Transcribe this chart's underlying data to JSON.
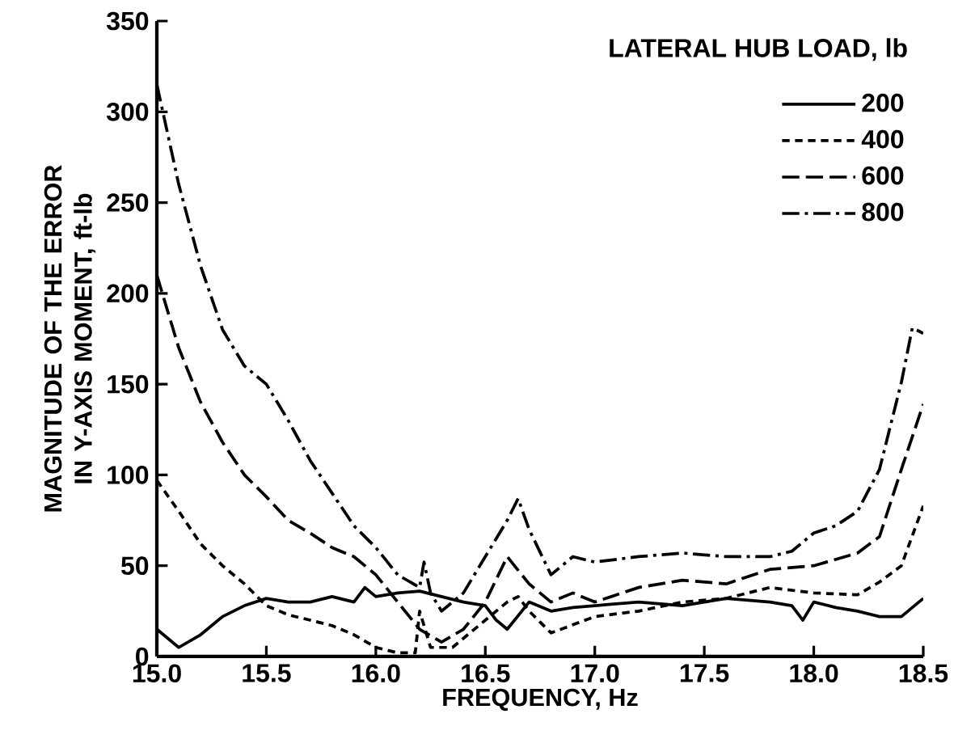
{
  "chart_data": {
    "type": "line",
    "xlabel": "FREQUENCY, Hz",
    "ylabel": "MAGNITUDE OF THE ERROR IN Y-AXIS MOMENT, ft-lb",
    "legend_title": "LATERAL HUB LOAD, lb",
    "legend": "top right",
    "grid": false,
    "marker": "none",
    "xlim": [
      15.0,
      18.5
    ],
    "ylim": [
      0,
      350
    ],
    "xticks": [
      {
        "value": 15.0,
        "label": "15.0"
      },
      15.5,
      {
        "value": 16.0,
        "label": "16.0"
      },
      16.5,
      {
        "value": 17.0,
        "label": "17.0"
      },
      17.5,
      {
        "value": 18.0,
        "label": "18.0"
      },
      18.5
    ],
    "yticks": [
      0,
      50,
      100,
      150,
      200,
      250,
      300,
      350
    ],
    "series": [
      {
        "name": "200",
        "color": "#000000",
        "line_style": "solid",
        "x": [
          15.0,
          15.05,
          15.1,
          15.2,
          15.3,
          15.4,
          15.5,
          15.6,
          15.7,
          15.8,
          15.9,
          15.95,
          16.0,
          16.1,
          16.2,
          16.3,
          16.4,
          16.5,
          16.55,
          16.6,
          16.7,
          16.8,
          16.9,
          17.0,
          17.2,
          17.4,
          17.6,
          17.8,
          17.9,
          17.95,
          18.0,
          18.1,
          18.2,
          18.3,
          18.4,
          18.5
        ],
        "values": [
          15,
          10,
          5,
          12,
          22,
          28,
          32,
          30,
          30,
          33,
          30,
          38,
          33,
          35,
          36,
          33,
          30,
          28,
          20,
          15,
          30,
          25,
          27,
          28,
          30,
          28,
          32,
          30,
          28,
          20,
          30,
          27,
          25,
          22,
          22,
          32
        ]
      },
      {
        "name": "400",
        "color": "#000000",
        "line_style": "dotted",
        "x": [
          15.0,
          15.1,
          15.2,
          15.3,
          15.4,
          15.5,
          15.6,
          15.8,
          15.9,
          16.0,
          16.1,
          16.18,
          16.2,
          16.25,
          16.35,
          16.5,
          16.6,
          16.65,
          16.7,
          16.8,
          17.0,
          17.2,
          17.4,
          17.6,
          17.8,
          18.0,
          18.2,
          18.3,
          18.4,
          18.5
        ],
        "values": [
          97,
          80,
          62,
          50,
          40,
          28,
          23,
          17,
          12,
          5,
          2,
          2,
          25,
          5,
          5,
          20,
          30,
          33,
          25,
          13,
          22,
          25,
          30,
          32,
          38,
          35,
          34,
          41,
          50,
          83
        ]
      },
      {
        "name": "600",
        "color": "#000000",
        "line_style": "dashed",
        "x": [
          15.0,
          15.1,
          15.2,
          15.3,
          15.4,
          15.5,
          15.6,
          15.7,
          15.8,
          15.9,
          16.0,
          16.1,
          16.2,
          16.3,
          16.4,
          16.5,
          16.6,
          16.7,
          16.8,
          16.9,
          17.0,
          17.2,
          17.4,
          17.6,
          17.8,
          18.0,
          18.2,
          18.3,
          18.4,
          18.5
        ],
        "values": [
          210,
          170,
          140,
          118,
          100,
          88,
          75,
          68,
          60,
          55,
          45,
          30,
          15,
          8,
          15,
          30,
          55,
          40,
          30,
          35,
          30,
          38,
          42,
          40,
          48,
          50,
          57,
          66,
          103,
          139
        ]
      },
      {
        "name": "800",
        "color": "#000000",
        "line_style": "dashdot",
        "x": [
          15.0,
          15.1,
          15.2,
          15.3,
          15.4,
          15.5,
          15.55,
          15.6,
          15.7,
          15.8,
          15.9,
          16.0,
          16.1,
          16.2,
          16.22,
          16.25,
          16.3,
          16.4,
          16.5,
          16.6,
          16.65,
          16.7,
          16.8,
          16.9,
          17.0,
          17.2,
          17.4,
          17.6,
          17.8,
          17.9,
          18.0,
          18.1,
          18.2,
          18.3,
          18.4,
          18.45,
          18.5
        ],
        "values": [
          315,
          260,
          215,
          180,
          160,
          150,
          140,
          130,
          108,
          90,
          72,
          60,
          45,
          38,
          52,
          35,
          25,
          35,
          55,
          75,
          87,
          70,
          45,
          55,
          52,
          55,
          57,
          55,
          55,
          58,
          68,
          72,
          80,
          103,
          151,
          181,
          178
        ]
      }
    ]
  }
}
